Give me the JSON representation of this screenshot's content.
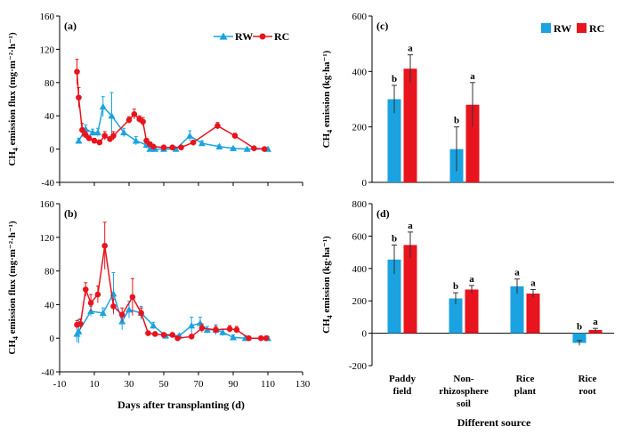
{
  "colors": {
    "rw": "#1aa3e0",
    "rc": "#e8141e"
  },
  "legend": {
    "rw": "RW",
    "rc": "RC"
  },
  "chart_data": [
    {
      "id": "a",
      "panel_label": "(a)",
      "type": "line",
      "ylabel_main": "CH",
      "ylabel_sub": "4",
      "ylabel_rest": " emission flux (mg·m⁻²·h⁻¹)",
      "xlim": [
        -10,
        130
      ],
      "ylim": [
        -40,
        160
      ],
      "xticks": [],
      "yticks": [
        "-40",
        "0",
        "40",
        "80",
        "120",
        "160"
      ],
      "legend_position": "top-right",
      "series": [
        {
          "name": "RW",
          "x": [
            1,
            5,
            9,
            12,
            15,
            20,
            27,
            34,
            40,
            42,
            45,
            50,
            57,
            65,
            72,
            82,
            90,
            98,
            110
          ],
          "y": [
            10,
            24,
            20,
            20,
            51,
            40,
            20,
            10,
            5,
            0,
            0,
            0,
            0,
            16,
            7,
            3,
            1,
            0,
            0
          ],
          "err": [
            3,
            5,
            4,
            5,
            12,
            28,
            5,
            5,
            4,
            2,
            2,
            1,
            2,
            6,
            3,
            2,
            1,
            1,
            1
          ]
        },
        {
          "name": "RC",
          "x": [
            0,
            1,
            3,
            5,
            7,
            10,
            13,
            16,
            19,
            21,
            30,
            33,
            36,
            38,
            40,
            42,
            44,
            50,
            55,
            60,
            67,
            81,
            91,
            102,
            108
          ],
          "y": [
            93,
            62,
            23,
            17,
            13,
            10,
            8,
            16,
            12,
            16,
            35,
            42,
            36,
            33,
            10,
            6,
            3,
            2,
            2,
            2,
            8,
            28,
            16,
            1,
            0
          ],
          "err": [
            15,
            12,
            8,
            4,
            3,
            3,
            3,
            5,
            3,
            5,
            4,
            6,
            4,
            5,
            3,
            2,
            1,
            1,
            1,
            1,
            2,
            4,
            3,
            1,
            1
          ]
        }
      ]
    },
    {
      "id": "b",
      "panel_label": "(b)",
      "type": "line",
      "ylabel_main": "CH",
      "ylabel_sub": "4",
      "ylabel_rest": " emission flux (mg·m⁻²·h⁻¹)",
      "xlabel": "Days after transplanting (d)",
      "xlim": [
        -10,
        130
      ],
      "ylim": [
        -40,
        160
      ],
      "xticks": [
        "-10",
        "10",
        "30",
        "50",
        "70",
        "90",
        "110",
        "130"
      ],
      "yticks": [
        "-40",
        "0",
        "40",
        "80",
        "120",
        "160"
      ],
      "series": [
        {
          "name": "RW",
          "x": [
            0,
            1,
            8,
            15,
            21,
            26,
            30,
            37,
            44,
            51,
            59,
            66,
            71,
            75,
            80,
            84,
            90,
            97,
            110
          ],
          "y": [
            5,
            8,
            32,
            30,
            53,
            20,
            34,
            30,
            15,
            3,
            3,
            15,
            18,
            10,
            10,
            7,
            1,
            0,
            0
          ],
          "err": [
            10,
            14,
            6,
            6,
            25,
            10,
            10,
            8,
            4,
            2,
            2,
            10,
            7,
            4,
            6,
            4,
            3,
            3,
            2
          ]
        },
        {
          "name": "RC",
          "x": [
            0,
            2,
            5,
            8,
            12,
            16,
            21,
            26,
            32,
            37,
            41,
            45,
            50,
            55,
            58,
            66,
            72,
            80,
            88,
            92,
            99,
            106,
            109
          ],
          "y": [
            16,
            17,
            58,
            42,
            52,
            110,
            38,
            28,
            49,
            30,
            6,
            5,
            4,
            4,
            0,
            2,
            12,
            10,
            11,
            10,
            0,
            0,
            0
          ],
          "err": [
            5,
            6,
            8,
            10,
            10,
            28,
            8,
            8,
            22,
            6,
            2,
            2,
            2,
            2,
            1,
            2,
            5,
            4,
            4,
            4,
            1,
            1,
            1
          ]
        }
      ]
    },
    {
      "id": "c",
      "panel_label": "(c)",
      "type": "bar",
      "ylabel_main": "CH",
      "ylabel_sub": "4",
      "ylabel_rest": " emission (kg·ha⁻¹)",
      "ylim": [
        0,
        600
      ],
      "yticks": [
        "0",
        "200",
        "400",
        "600"
      ],
      "legend_position": "top-right",
      "categories": [
        "Paddy field",
        "Non-rhizosphere soil"
      ],
      "series": [
        {
          "name": "RW",
          "values": [
            300,
            120
          ],
          "err": [
            50,
            80
          ],
          "sig": [
            "b",
            "b"
          ]
        },
        {
          "name": "RC",
          "values": [
            410,
            280
          ],
          "err": [
            50,
            80
          ],
          "sig": [
            "a",
            "a"
          ]
        }
      ]
    },
    {
      "id": "d",
      "panel_label": "(d)",
      "type": "bar",
      "ylabel_main": "CH",
      "ylabel_sub": "4",
      "ylabel_rest": " emission (kg·ha⁻¹)",
      "xlabel": "Different source",
      "ylim": [
        -200,
        800
      ],
      "yticks": [
        "-200",
        "0",
        "200",
        "400",
        "600",
        "800"
      ],
      "categories": [
        [
          "Paddy",
          "field"
        ],
        [
          "Non-",
          "rhizosphere",
          "soil"
        ],
        [
          "Rice",
          "plant"
        ],
        [
          "Rice",
          "root"
        ]
      ],
      "series": [
        {
          "name": "RW",
          "values": [
            455,
            215,
            290,
            -60
          ],
          "err": [
            90,
            35,
            45,
            15
          ],
          "sig": [
            "b",
            "b",
            "a",
            "b"
          ]
        },
        {
          "name": "RC",
          "values": [
            545,
            270,
            245,
            20
          ],
          "err": [
            80,
            25,
            25,
            10
          ],
          "sig": [
            "a",
            "a",
            "a",
            "a"
          ]
        }
      ]
    }
  ]
}
